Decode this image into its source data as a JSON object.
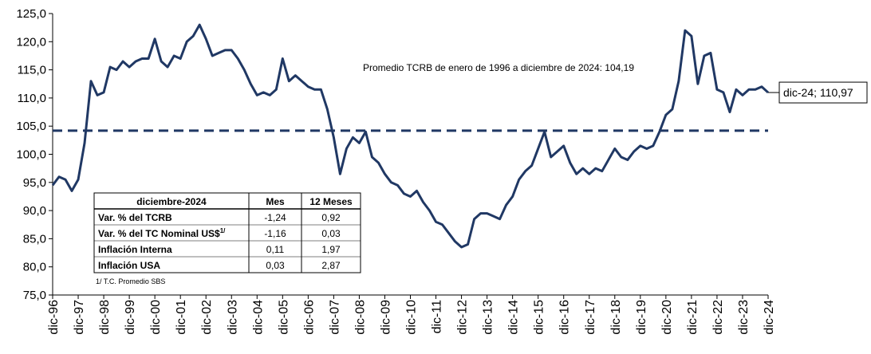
{
  "chart_data": {
    "type": "line",
    "color": "#203864",
    "categories": [
      "dic-96",
      null,
      null,
      null,
      "dic-97",
      null,
      null,
      null,
      "dic-98",
      null,
      null,
      null,
      "dic-99",
      null,
      null,
      null,
      "dic-00",
      null,
      null,
      null,
      "dic-01",
      null,
      null,
      null,
      "dic-02",
      null,
      null,
      null,
      "dic-03",
      null,
      null,
      null,
      "dic-04",
      null,
      null,
      null,
      "dic-05",
      null,
      null,
      null,
      "dic-06",
      null,
      null,
      null,
      "dic-07",
      null,
      null,
      null,
      "dic-08",
      null,
      null,
      null,
      "dic-09",
      null,
      null,
      null,
      "dic-10",
      null,
      null,
      null,
      "dic-11",
      null,
      null,
      null,
      "dic-12",
      null,
      null,
      null,
      "dic-13",
      null,
      null,
      null,
      "dic-14",
      null,
      null,
      null,
      "dic-15",
      null,
      null,
      null,
      "dic-16",
      null,
      null,
      null,
      "dic-17",
      null,
      null,
      null,
      "dic-18",
      null,
      null,
      null,
      "dic-19",
      null,
      null,
      null,
      "dic-20",
      null,
      null,
      null,
      "dic-21",
      null,
      null,
      null,
      "dic-22",
      null,
      null,
      null,
      "dic-23",
      null,
      null,
      null,
      "dic-24"
    ],
    "values": [
      94.5,
      96,
      95.5,
      93.5,
      95.5,
      102,
      113,
      110.5,
      111,
      115.5,
      115,
      116.5,
      115.5,
      116.5,
      117,
      117,
      120.5,
      116.5,
      115.5,
      117.5,
      117,
      120,
      121,
      123,
      120.5,
      117.5,
      118,
      118.5,
      118.5,
      117,
      115,
      112.5,
      110.5,
      111,
      110.5,
      111.5,
      117,
      113,
      114,
      113,
      112,
      111.5,
      111.5,
      108,
      103,
      96.5,
      101,
      103,
      102,
      104,
      99.5,
      98.5,
      96.5,
      95,
      94.5,
      93,
      92.5,
      93.5,
      91.5,
      90,
      88,
      87.5,
      86,
      84.5,
      83.5,
      84,
      88.5,
      89.5,
      89.5,
      89,
      88.5,
      91,
      92.5,
      95.5,
      97,
      98,
      101,
      104,
      99.5,
      100.5,
      101.5,
      98.5,
      96.5,
      97.5,
      96.5,
      97.5,
      97,
      99,
      101,
      99.5,
      99,
      100.5,
      101.5,
      101,
      101.5,
      104,
      107,
      108,
      113,
      122,
      121,
      112.5,
      117.5,
      118,
      111.5,
      111,
      107.5,
      111.5,
      110.5,
      111.5,
      111.5,
      112,
      110.97
    ],
    "value_labels": [
      null,
      null,
      null,
      null,
      null,
      null,
      null,
      null,
      null,
      null,
      null,
      null,
      null,
      null,
      null,
      null,
      null,
      null,
      null,
      null,
      null,
      null,
      null,
      null,
      null,
      null,
      null,
      null,
      null,
      null,
      null,
      null,
      null,
      null,
      null,
      null,
      null,
      null,
      null,
      null,
      null,
      null,
      null,
      null,
      null,
      null,
      null,
      null,
      null,
      null,
      null,
      null,
      null,
      null,
      null,
      null,
      null,
      null,
      null,
      null,
      null,
      null,
      null,
      null,
      null,
      null,
      null,
      null,
      null,
      null,
      null,
      null,
      null,
      null,
      null,
      null,
      null,
      null,
      null,
      null,
      null,
      null,
      null,
      null,
      null,
      null,
      null,
      null,
      null,
      null,
      null,
      null,
      null,
      null,
      null,
      null,
      null,
      null,
      null,
      null,
      null,
      null,
      null,
      null,
      null,
      null,
      null,
      null,
      null,
      null,
      null,
      null,
      "dic-24; 110,97"
    ],
    "ylim": [
      75,
      125
    ],
    "yticks": [
      {
        "value": 75,
        "label": "75,0"
      },
      {
        "value": 80,
        "label": "80,0"
      },
      {
        "value": 85,
        "label": "85,0"
      },
      {
        "value": 90,
        "label": "90,0"
      },
      {
        "value": 95,
        "label": "95,0"
      },
      {
        "value": 100,
        "label": "100,0"
      },
      {
        "value": 105,
        "label": "105,0"
      },
      {
        "value": 110,
        "label": "110,0"
      },
      {
        "value": 115,
        "label": "115,0"
      },
      {
        "value": 120,
        "label": "120,0"
      },
      {
        "value": 125,
        "label": "125,0"
      }
    ],
    "reference_line": {
      "value": 104.19,
      "label": "Promedio TCRB de enero de 1996 a diciembre de 2024: 104,19"
    },
    "table": {
      "header": [
        "diciembre-2024",
        "Mes",
        "12 Meses"
      ],
      "rows": [
        {
          "label": "Var. % del TCRB",
          "cells": [
            "-1,24",
            "0,92"
          ]
        },
        {
          "label": "Var. % del TC Nominal US$",
          "sup": "1/",
          "cells": [
            "-1,16",
            "0,03"
          ]
        },
        {
          "label": "Inflación Interna",
          "cells": [
            "0,11",
            "1,97"
          ]
        },
        {
          "label": "Inflación USA",
          "cells": [
            "0,03",
            "2,87"
          ]
        }
      ],
      "footnote": "1/ T.C. Promedio SBS"
    }
  }
}
